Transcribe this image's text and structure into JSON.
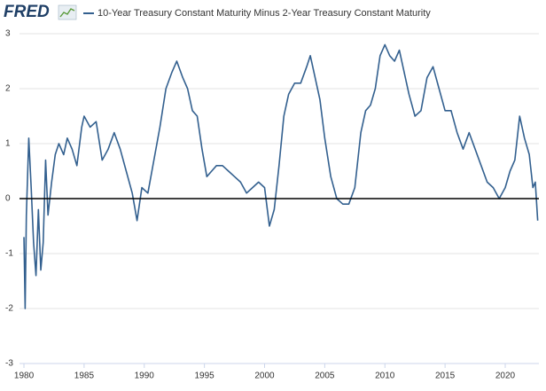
{
  "chart_data": {
    "type": "line",
    "logo": "FRED",
    "series": [
      {
        "name": "10-Year Treasury Constant Maturity Minus 2-Year Treasury Constant Maturity",
        "color": "#33608f",
        "x": [
          1980.0,
          1980.1,
          1980.2,
          1980.4,
          1980.6,
          1980.8,
          1981.0,
          1981.2,
          1981.4,
          1981.6,
          1981.8,
          1982.0,
          1982.3,
          1982.6,
          1982.9,
          1983.3,
          1983.6,
          1984.0,
          1984.4,
          1984.8,
          1985.0,
          1985.5,
          1986.0,
          1986.5,
          1987.0,
          1987.5,
          1988.0,
          1988.5,
          1989.0,
          1989.4,
          1989.8,
          1990.3,
          1990.8,
          1991.3,
          1991.8,
          1992.3,
          1992.7,
          1993.2,
          1993.6,
          1994.0,
          1994.4,
          1994.8,
          1995.2,
          1995.6,
          1996.0,
          1996.5,
          1997.0,
          1997.5,
          1998.0,
          1998.5,
          1999.0,
          1999.5,
          2000.0,
          2000.4,
          2000.8,
          2001.2,
          2001.6,
          2002.0,
          2002.5,
          2003.0,
          2003.5,
          2003.8,
          2004.2,
          2004.6,
          2005.0,
          2005.5,
          2006.0,
          2006.5,
          2007.0,
          2007.5,
          2008.0,
          2008.4,
          2008.8,
          2009.2,
          2009.6,
          2010.0,
          2010.4,
          2010.8,
          2011.2,
          2011.6,
          2012.0,
          2012.5,
          2013.0,
          2013.5,
          2014.0,
          2014.5,
          2015.0,
          2015.5,
          2016.0,
          2016.5,
          2017.0,
          2017.5,
          2018.0,
          2018.5,
          2019.0,
          2019.5,
          2020.0,
          2020.4,
          2020.8,
          2021.2,
          2021.6,
          2022.0,
          2022.3,
          2022.5,
          2022.7
        ],
        "values": [
          -0.7,
          -2.0,
          -0.3,
          1.1,
          0.2,
          -0.8,
          -1.4,
          -0.2,
          -1.3,
          -0.8,
          0.7,
          -0.3,
          0.3,
          0.8,
          1.0,
          0.8,
          1.1,
          0.9,
          0.6,
          1.3,
          1.5,
          1.3,
          1.4,
          0.7,
          0.9,
          1.2,
          0.9,
          0.5,
          0.1,
          -0.4,
          0.2,
          0.1,
          0.7,
          1.3,
          2.0,
          2.3,
          2.5,
          2.2,
          2.0,
          1.6,
          1.5,
          0.9,
          0.4,
          0.5,
          0.6,
          0.6,
          0.5,
          0.4,
          0.3,
          0.1,
          0.2,
          0.3,
          0.2,
          -0.5,
          -0.2,
          0.6,
          1.5,
          1.9,
          2.1,
          2.1,
          2.4,
          2.6,
          2.2,
          1.8,
          1.1,
          0.4,
          0.0,
          -0.1,
          -0.1,
          0.2,
          1.2,
          1.6,
          1.7,
          2.0,
          2.6,
          2.8,
          2.6,
          2.5,
          2.7,
          2.3,
          1.9,
          1.5,
          1.6,
          2.2,
          2.4,
          2.0,
          1.6,
          1.6,
          1.2,
          0.9,
          1.2,
          0.9,
          0.6,
          0.3,
          0.2,
          0.0,
          0.2,
          0.5,
          0.7,
          1.5,
          1.1,
          0.8,
          0.2,
          0.3,
          -0.4
        ]
      }
    ],
    "xlim": [
      1979.63,
      2022.8
    ],
    "xticks": [
      1980,
      1985,
      1990,
      1995,
      2000,
      2005,
      2010,
      2015,
      2020
    ],
    "ylim": [
      -3,
      3
    ],
    "yticks": [
      -3,
      -2,
      -1,
      0,
      1,
      2,
      3
    ],
    "grid": true,
    "zero_line": true
  }
}
